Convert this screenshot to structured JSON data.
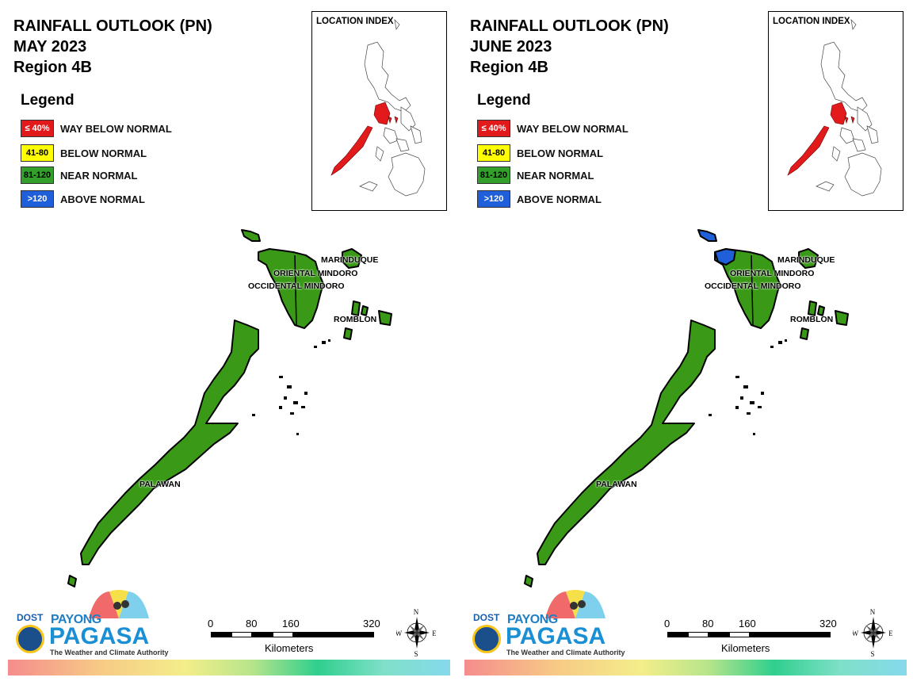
{
  "panels": [
    {
      "title_line1": "RAINFALL OUTLOOK (PN)",
      "title_line2": "MAY 2023",
      "title_line3": "Region 4B",
      "legend_title": "Legend",
      "legend": [
        {
          "swatch": "≤ 40%",
          "label": "WAY BELOW NORMAL",
          "color": "#e31a1c",
          "text_color": "#ffffff"
        },
        {
          "swatch": "41-80",
          "label": "BELOW NORMAL",
          "color": "#ffff00",
          "text_color": "#000000"
        },
        {
          "swatch": "81-120",
          "label": "NEAR NORMAL",
          "color": "#33a02c",
          "text_color": "#000000"
        },
        {
          "swatch": ">120",
          "label": "ABOVE NORMAL",
          "color": "#1f5fd9",
          "text_color": "#ffffff"
        }
      ],
      "inset_title": "LOCATION INDEX",
      "provinces": {
        "marinduque": "MARINDUQUE",
        "oriental_mindoro": "ORIENTAL MINDORO",
        "occidental_mindoro": "OCCIDENTAL MINDORO",
        "romblon": "ROMBLON",
        "palawan": "PALAWAN"
      },
      "province_status": {
        "marinduque": "near",
        "oriental_mindoro": "near",
        "occidental_mindoro": "near",
        "romblon": "near",
        "palawan": "near",
        "lubang": "near"
      },
      "scale": {
        "ticks": [
          "0",
          "80",
          "160",
          "320"
        ],
        "unit": "Kilometers"
      },
      "compass": {
        "n": "N",
        "s": "S",
        "e": "E",
        "w": "W"
      },
      "logo": {
        "dost": "DOST",
        "payong": "PAYONG",
        "pagasa": "PAGASA",
        "tagline": "The Weather and Climate Authority"
      }
    },
    {
      "title_line1": "RAINFALL OUTLOOK (PN)",
      "title_line2": "JUNE 2023",
      "title_line3": "Region 4B",
      "legend_title": "Legend",
      "legend": [
        {
          "swatch": "≤ 40%",
          "label": "WAY BELOW NORMAL",
          "color": "#e31a1c",
          "text_color": "#ffffff"
        },
        {
          "swatch": "41-80",
          "label": "BELOW NORMAL",
          "color": "#ffff00",
          "text_color": "#000000"
        },
        {
          "swatch": "81-120",
          "label": "NEAR NORMAL",
          "color": "#33a02c",
          "text_color": "#000000"
        },
        {
          "swatch": ">120",
          "label": "ABOVE NORMAL",
          "color": "#1f5fd9",
          "text_color": "#ffffff"
        }
      ],
      "inset_title": "LOCATION INDEX",
      "provinces": {
        "marinduque": "MARINDUQUE",
        "oriental_mindoro": "ORIENTAL MINDORO",
        "occidental_mindoro": "OCCIDENTAL MINDORO",
        "romblon": "ROMBLON",
        "palawan": "PALAWAN"
      },
      "province_status": {
        "marinduque": "near",
        "oriental_mindoro": "near",
        "occidental_mindoro": "near",
        "romblon": "near",
        "palawan": "near",
        "lubang": "above",
        "nw_mindoro": "above"
      },
      "scale": {
        "ticks": [
          "0",
          "80",
          "160",
          "320"
        ],
        "unit": "Kilometers"
      },
      "compass": {
        "n": "N",
        "s": "S",
        "e": "E",
        "w": "W"
      },
      "logo": {
        "dost": "DOST",
        "payong": "PAYONG",
        "pagasa": "PAGASA",
        "tagline": "The Weather and Climate Authority"
      }
    }
  ]
}
